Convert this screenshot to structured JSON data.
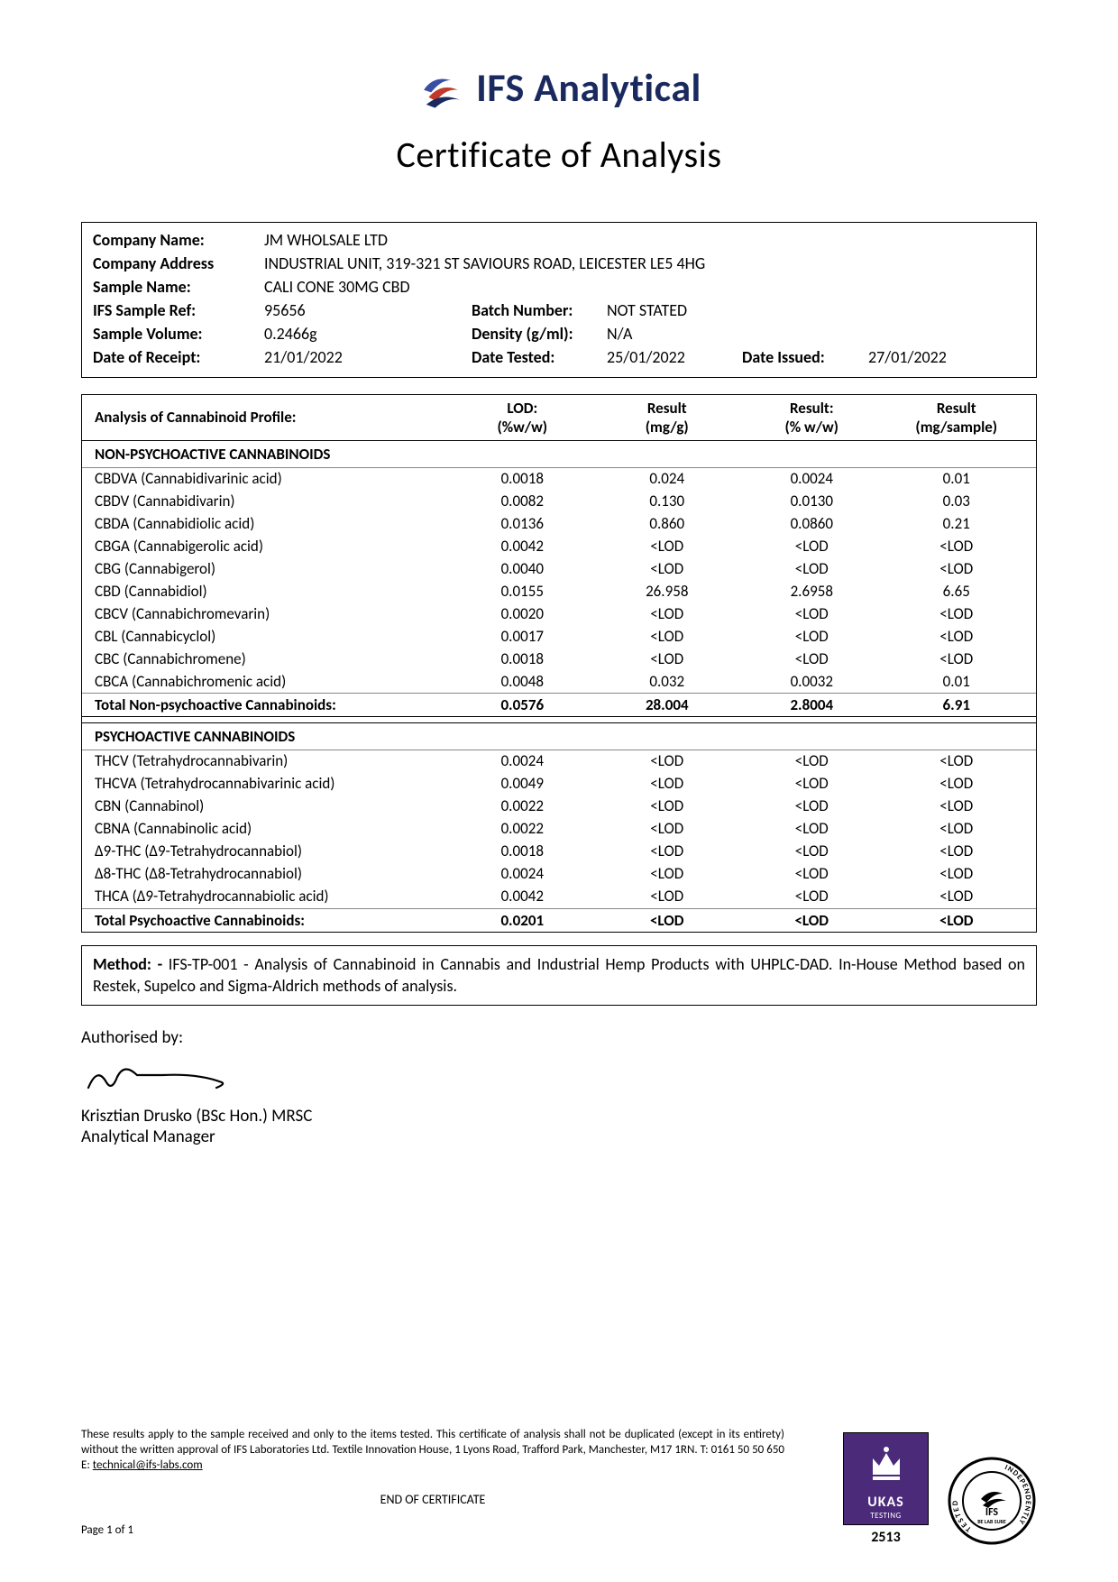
{
  "header": {
    "brand": "IFS Analytical",
    "title": "Certificate of Analysis",
    "logo_colors": {
      "swoosh1": "#3a4fa3",
      "swoosh2": "#c0392b",
      "swoosh3": "#1a2a5e"
    }
  },
  "info": {
    "labels": {
      "company_name": "Company Name:",
      "company_address": "Company Address",
      "sample_name": "Sample Name:",
      "ifs_sample_ref": "IFS Sample Ref:",
      "sample_volume": "Sample Volume:",
      "date_receipt": "Date of Receipt:",
      "batch_number": "Batch Number:",
      "density": "Density (g/ml):",
      "date_tested": "Date Tested:",
      "date_issued": "Date Issued:"
    },
    "company_name": "JM WHOLSALE LTD",
    "company_address": "INDUSTRIAL UNIT, 319-321 ST SAVIOURS ROAD, LEICESTER LE5 4HG",
    "sample_name": "CALI CONE 30MG CBD",
    "ifs_sample_ref": "95656",
    "sample_volume": "0.2466g",
    "date_receipt": "21/01/2022",
    "batch_number": "NOT STATED",
    "density": "N/A",
    "date_tested": "25/01/2022",
    "date_issued": "27/01/2022"
  },
  "table": {
    "title": "Analysis of Cannabinoid Profile:",
    "columns": {
      "lod_line1": "LOD:",
      "lod_line2": "(%w/w)",
      "r1_line1": "Result",
      "r1_line2": "(mg/g)",
      "r2_line1": "Result:",
      "r2_line2": "(% w/w)",
      "r3_line1": "Result",
      "r3_line2": "(mg/sample)"
    },
    "section1": "NON-PSYCHOACTIVE CANNABINOIDS",
    "nonpsycho": [
      {
        "name": "CBDVA (Cannabidivarinic acid)",
        "lod": "0.0018",
        "r1": "0.024",
        "r2": "0.0024",
        "r3": "0.01"
      },
      {
        "name": "CBDV (Cannabidivarin)",
        "lod": "0.0082",
        "r1": "0.130",
        "r2": "0.0130",
        "r3": "0.03"
      },
      {
        "name": "CBDA (Cannabidiolic acid)",
        "lod": "0.0136",
        "r1": "0.860",
        "r2": "0.0860",
        "r3": "0.21"
      },
      {
        "name": "CBGA (Cannabigerolic acid)",
        "lod": "0.0042",
        "r1": "<LOD",
        "r2": "<LOD",
        "r3": "<LOD"
      },
      {
        "name": "CBG (Cannabigerol)",
        "lod": "0.0040",
        "r1": "<LOD",
        "r2": "<LOD",
        "r3": "<LOD"
      },
      {
        "name": "CBD (Cannabidiol)",
        "lod": "0.0155",
        "r1": "26.958",
        "r2": "2.6958",
        "r3": "6.65"
      },
      {
        "name": "CBCV (Cannabichromevarin)",
        "lod": "0.0020",
        "r1": "<LOD",
        "r2": "<LOD",
        "r3": "<LOD"
      },
      {
        "name": "CBL (Cannabicyclol)",
        "lod": "0.0017",
        "r1": "<LOD",
        "r2": "<LOD",
        "r3": "<LOD"
      },
      {
        "name": "CBC (Cannabichromene)",
        "lod": "0.0018",
        "r1": "<LOD",
        "r2": "<LOD",
        "r3": "<LOD"
      },
      {
        "name": "CBCA (Cannabichromenic acid)",
        "lod": "0.0048",
        "r1": "0.032",
        "r2": "0.0032",
        "r3": "0.01"
      }
    ],
    "nonpsycho_total": {
      "name": "Total Non-psychoactive Cannabinoids:",
      "lod": "0.0576",
      "r1": "28.004",
      "r2": "2.8004",
      "r3": "6.91"
    },
    "section2": "PSYCHOACTIVE CANNABINOIDS",
    "psycho": [
      {
        "name": "THCV (Tetrahydrocannabivarin)",
        "lod": "0.0024",
        "r1": "<LOD",
        "r2": "<LOD",
        "r3": "<LOD"
      },
      {
        "name": "THCVA (Tetrahydrocannabivarinic acid)",
        "lod": "0.0049",
        "r1": "<LOD",
        "r2": "<LOD",
        "r3": "<LOD"
      },
      {
        "name": "CBN (Cannabinol)",
        "lod": "0.0022",
        "r1": "<LOD",
        "r2": "<LOD",
        "r3": "<LOD"
      },
      {
        "name": "CBNA (Cannabinolic acid)",
        "lod": "0.0022",
        "r1": "<LOD",
        "r2": "<LOD",
        "r3": "<LOD"
      },
      {
        "name": "Δ9-THC (Δ9-Tetrahydrocannabiol)",
        "lod": "0.0018",
        "r1": "<LOD",
        "r2": "<LOD",
        "r3": "<LOD"
      },
      {
        "name": "Δ8-THC (Δ8-Tetrahydrocannabiol)",
        "lod": "0.0024",
        "r1": "<LOD",
        "r2": "<LOD",
        "r3": "<LOD"
      },
      {
        "name": "THCA (Δ9-Tetrahydrocannabiolic acid)",
        "lod": "0.0042",
        "r1": "<LOD",
        "r2": "<LOD",
        "r3": "<LOD"
      }
    ],
    "psycho_total": {
      "name": "Total Psychoactive Cannabinoids:",
      "lod": "0.0201",
      "r1": "<LOD",
      "r2": "<LOD",
      "r3": "<LOD"
    }
  },
  "method": {
    "label": "Method: -",
    "text": " IFS-TP-001 - Analysis of Cannabinoid in Cannabis and Industrial Hemp Products with UHPLC-DAD. In-House Method based on Restek, Supelco and Sigma-Aldrich methods of analysis."
  },
  "auth": {
    "label": "Authorised by:",
    "name": "Krisztian Drusko (BSc Hon.) MRSC",
    "role": "Analytical Manager"
  },
  "footer": {
    "disclaimer": "These results apply to the sample received and only to the items tested. This certificate of analysis shall not be duplicated (except in its entirety) without the written approval of IFS Laboratories Ltd. Textile Innovation House, 1 Lyons Road, Trafford Park, Manchester, M17 1RN. T: 0161 50 50 650 E: ",
    "email": "technical@ifs-labs.com",
    "endcert": "END OF CERTIFICATE",
    "page": "Page 1 of 1",
    "ukas_label": "UKAS",
    "ukas_testing": "TESTING",
    "ukas_num": "2513",
    "indep_top": "INDEPENDENTLY",
    "indep_bot": "TESTED",
    "indep_center": "IFS",
    "indep_sub": "BE LAB SURE"
  },
  "colors": {
    "text": "#000000",
    "brand_navy": "#1a2a5e",
    "ukas_bg": "#4b2a7a",
    "border": "#000000"
  }
}
